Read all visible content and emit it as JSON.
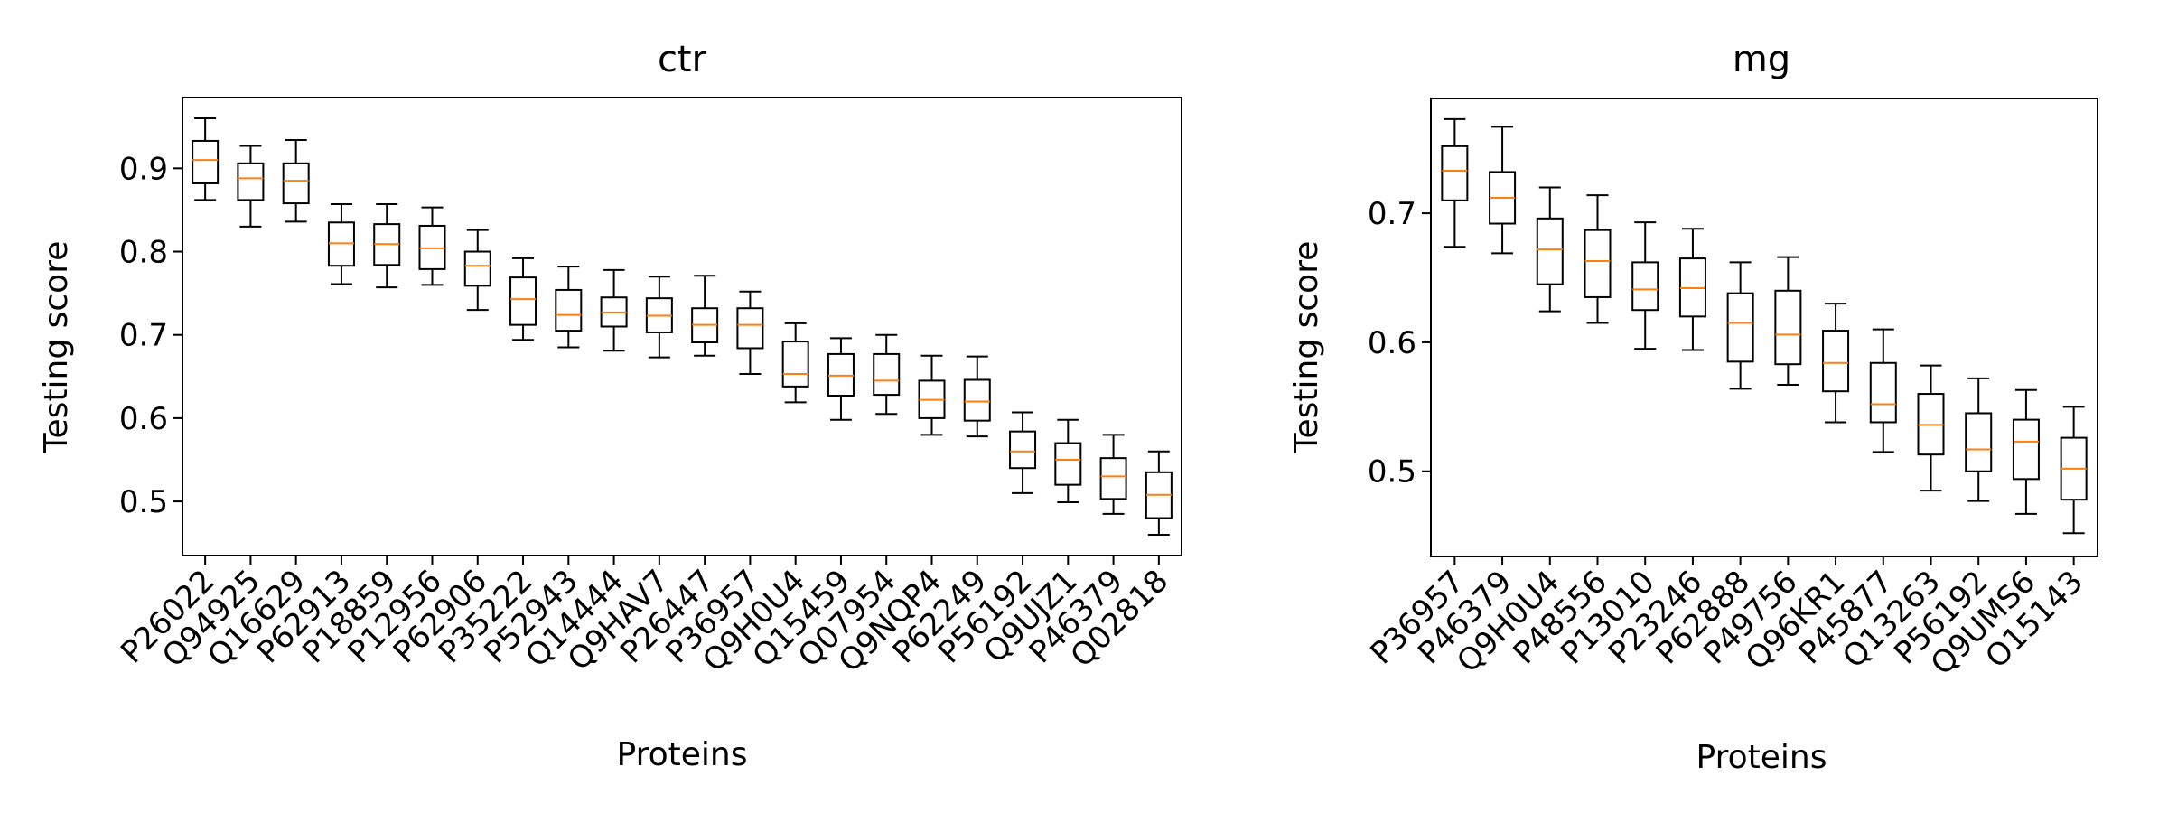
{
  "chart_data": [
    {
      "type": "box",
      "title": "ctr",
      "xlabel": "Proteins",
      "ylabel": "Testing score",
      "ylim": [
        0.435,
        0.985
      ],
      "yticks": [
        0.5,
        0.6,
        0.7,
        0.8,
        0.9
      ],
      "ytick_labels": [
        "0.5",
        "0.6",
        "0.7",
        "0.8",
        "0.9"
      ],
      "grid": false,
      "categories": [
        "P26022",
        "Q94925",
        "Q16629",
        "P62913",
        "P18859",
        "P12956",
        "P62906",
        "P35222",
        "P52943",
        "Q14444",
        "Q9HAV7",
        "P26447",
        "P36957",
        "Q9H0U4",
        "Q15459",
        "Q07954",
        "Q9NQP4",
        "P62249",
        "P56192",
        "Q9UJZ1",
        "P46379",
        "Q02818"
      ],
      "boxes": [
        {
          "whisker_low": 0.862,
          "q1": 0.882,
          "median": 0.91,
          "q3": 0.933,
          "whisker_high": 0.96
        },
        {
          "whisker_low": 0.83,
          "q1": 0.862,
          "median": 0.888,
          "q3": 0.906,
          "whisker_high": 0.927
        },
        {
          "whisker_low": 0.836,
          "q1": 0.858,
          "median": 0.885,
          "q3": 0.906,
          "whisker_high": 0.934
        },
        {
          "whisker_low": 0.761,
          "q1": 0.783,
          "median": 0.81,
          "q3": 0.835,
          "whisker_high": 0.857
        },
        {
          "whisker_low": 0.757,
          "q1": 0.784,
          "median": 0.809,
          "q3": 0.833,
          "whisker_high": 0.857
        },
        {
          "whisker_low": 0.76,
          "q1": 0.779,
          "median": 0.804,
          "q3": 0.831,
          "whisker_high": 0.853
        },
        {
          "whisker_low": 0.73,
          "q1": 0.759,
          "median": 0.783,
          "q3": 0.8,
          "whisker_high": 0.826
        },
        {
          "whisker_low": 0.694,
          "q1": 0.712,
          "median": 0.743,
          "q3": 0.769,
          "whisker_high": 0.792
        },
        {
          "whisker_low": 0.685,
          "q1": 0.705,
          "median": 0.724,
          "q3": 0.754,
          "whisker_high": 0.782
        },
        {
          "whisker_low": 0.681,
          "q1": 0.71,
          "median": 0.727,
          "q3": 0.745,
          "whisker_high": 0.778
        },
        {
          "whisker_low": 0.673,
          "q1": 0.703,
          "median": 0.723,
          "q3": 0.744,
          "whisker_high": 0.77
        },
        {
          "whisker_low": 0.675,
          "q1": 0.691,
          "median": 0.712,
          "q3": 0.732,
          "whisker_high": 0.771
        },
        {
          "whisker_low": 0.653,
          "q1": 0.684,
          "median": 0.712,
          "q3": 0.732,
          "whisker_high": 0.752
        },
        {
          "whisker_low": 0.619,
          "q1": 0.638,
          "median": 0.653,
          "q3": 0.692,
          "whisker_high": 0.714
        },
        {
          "whisker_low": 0.598,
          "q1": 0.627,
          "median": 0.651,
          "q3": 0.677,
          "whisker_high": 0.696
        },
        {
          "whisker_low": 0.605,
          "q1": 0.628,
          "median": 0.645,
          "q3": 0.677,
          "whisker_high": 0.7
        },
        {
          "whisker_low": 0.58,
          "q1": 0.6,
          "median": 0.622,
          "q3": 0.645,
          "whisker_high": 0.675
        },
        {
          "whisker_low": 0.578,
          "q1": 0.597,
          "median": 0.62,
          "q3": 0.646,
          "whisker_high": 0.674
        },
        {
          "whisker_low": 0.51,
          "q1": 0.54,
          "median": 0.56,
          "q3": 0.584,
          "whisker_high": 0.607
        },
        {
          "whisker_low": 0.499,
          "q1": 0.52,
          "median": 0.55,
          "q3": 0.57,
          "whisker_high": 0.598
        },
        {
          "whisker_low": 0.485,
          "q1": 0.503,
          "median": 0.53,
          "q3": 0.552,
          "whisker_high": 0.58
        },
        {
          "whisker_low": 0.46,
          "q1": 0.48,
          "median": 0.508,
          "q3": 0.535,
          "whisker_high": 0.56
        }
      ]
    },
    {
      "type": "box",
      "title": "mg",
      "xlabel": "Proteins",
      "ylabel": "Testing score",
      "ylim": [
        0.434,
        0.789
      ],
      "yticks": [
        0.5,
        0.6,
        0.7
      ],
      "ytick_labels": [
        "0.5",
        "0.6",
        "0.7"
      ],
      "grid": false,
      "categories": [
        "P36957",
        "P46379",
        "Q9H0U4",
        "P48556",
        "P13010",
        "P23246",
        "P62888",
        "P49756",
        "Q96KR1",
        "P45877",
        "Q13263",
        "P56192",
        "Q9UMS6",
        "O15143"
      ],
      "boxes": [
        {
          "whisker_low": 0.674,
          "q1": 0.71,
          "median": 0.733,
          "q3": 0.752,
          "whisker_high": 0.773
        },
        {
          "whisker_low": 0.669,
          "q1": 0.692,
          "median": 0.712,
          "q3": 0.732,
          "whisker_high": 0.767
        },
        {
          "whisker_low": 0.624,
          "q1": 0.645,
          "median": 0.672,
          "q3": 0.696,
          "whisker_high": 0.72
        },
        {
          "whisker_low": 0.615,
          "q1": 0.635,
          "median": 0.663,
          "q3": 0.687,
          "whisker_high": 0.714
        },
        {
          "whisker_low": 0.595,
          "q1": 0.625,
          "median": 0.641,
          "q3": 0.662,
          "whisker_high": 0.693
        },
        {
          "whisker_low": 0.594,
          "q1": 0.62,
          "median": 0.642,
          "q3": 0.665,
          "whisker_high": 0.688
        },
        {
          "whisker_low": 0.564,
          "q1": 0.585,
          "median": 0.615,
          "q3": 0.638,
          "whisker_high": 0.662
        },
        {
          "whisker_low": 0.567,
          "q1": 0.583,
          "median": 0.606,
          "q3": 0.64,
          "whisker_high": 0.666
        },
        {
          "whisker_low": 0.538,
          "q1": 0.562,
          "median": 0.584,
          "q3": 0.609,
          "whisker_high": 0.63
        },
        {
          "whisker_low": 0.515,
          "q1": 0.538,
          "median": 0.552,
          "q3": 0.584,
          "whisker_high": 0.61
        },
        {
          "whisker_low": 0.485,
          "q1": 0.513,
          "median": 0.536,
          "q3": 0.56,
          "whisker_high": 0.582
        },
        {
          "whisker_low": 0.477,
          "q1": 0.5,
          "median": 0.517,
          "q3": 0.545,
          "whisker_high": 0.572
        },
        {
          "whisker_low": 0.467,
          "q1": 0.494,
          "median": 0.523,
          "q3": 0.54,
          "whisker_high": 0.563
        },
        {
          "whisker_low": 0.452,
          "q1": 0.478,
          "median": 0.502,
          "q3": 0.526,
          "whisker_high": 0.55
        }
      ]
    }
  ],
  "colors": {
    "box_edge": "#000000",
    "median": "#ff7f0e",
    "axes": "#000000",
    "background": "#ffffff"
  }
}
